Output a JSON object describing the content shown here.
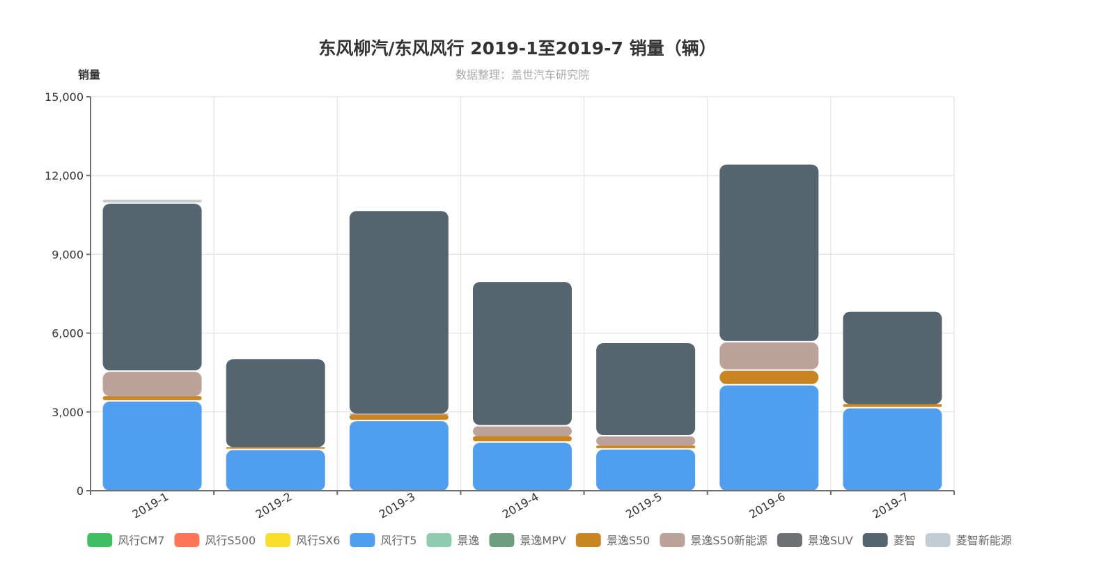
{
  "chart_data": {
    "type": "bar",
    "stacked": true,
    "title": "东风柳汽/东风风行 2019-1至2019-7 销量（辆）",
    "subtitle": "数据整理：盖世汽车研究院",
    "ylabel": "销量",
    "xlabel": "",
    "ylim": [
      0,
      15000
    ],
    "yticks": [
      "0",
      "3,000",
      "6,000",
      "9,000",
      "12,000",
      "15,000"
    ],
    "ytick_values": [
      0,
      3000,
      6000,
      9000,
      12000,
      15000
    ],
    "categories": [
      "2019-1",
      "2019-2",
      "2019-3",
      "2019-4",
      "2019-5",
      "2019-6",
      "2019-7"
    ],
    "grid": true,
    "legend_position": "bottom",
    "series": [
      {
        "name": "风行CM7",
        "color": "#3fbf62",
        "values": [
          0,
          0,
          0,
          0,
          0,
          0,
          0
        ]
      },
      {
        "name": "风行S500",
        "color": "#ff7559",
        "values": [
          0,
          0,
          0,
          0,
          0,
          0,
          0
        ]
      },
      {
        "name": "风行SX6",
        "color": "#f9de2b",
        "values": [
          0,
          0,
          0,
          0,
          0,
          0,
          0
        ]
      },
      {
        "name": "风行T5",
        "color": "#509ef0",
        "values": [
          3450,
          1600,
          2700,
          1880,
          1620,
          4060,
          3190
        ]
      },
      {
        "name": "景逸",
        "color": "#8fcbaf",
        "values": [
          0,
          0,
          0,
          0,
          0,
          0,
          0
        ]
      },
      {
        "name": "景逸MPV",
        "color": "#6f9e7e",
        "values": [
          0,
          0,
          0,
          0,
          0,
          0,
          0
        ]
      },
      {
        "name": "景逸S50",
        "color": "#c98522",
        "values": [
          150,
          60,
          200,
          200,
          100,
          560,
          110
        ]
      },
      {
        "name": "景逸S50新能源",
        "color": "#bda29a",
        "values": [
          980,
          0,
          40,
          420,
          400,
          1080,
          0
        ]
      },
      {
        "name": "景逸SUV",
        "color": "#6e7074",
        "values": [
          0,
          0,
          0,
          0,
          0,
          0,
          0
        ]
      },
      {
        "name": "菱智",
        "color": "#546570",
        "values": [
          6400,
          3400,
          7760,
          5500,
          3550,
          6770,
          3570
        ]
      },
      {
        "name": "菱智新能源",
        "color": "#c4ccd3",
        "values": [
          100,
          0,
          0,
          0,
          0,
          0,
          0
        ]
      }
    ]
  }
}
